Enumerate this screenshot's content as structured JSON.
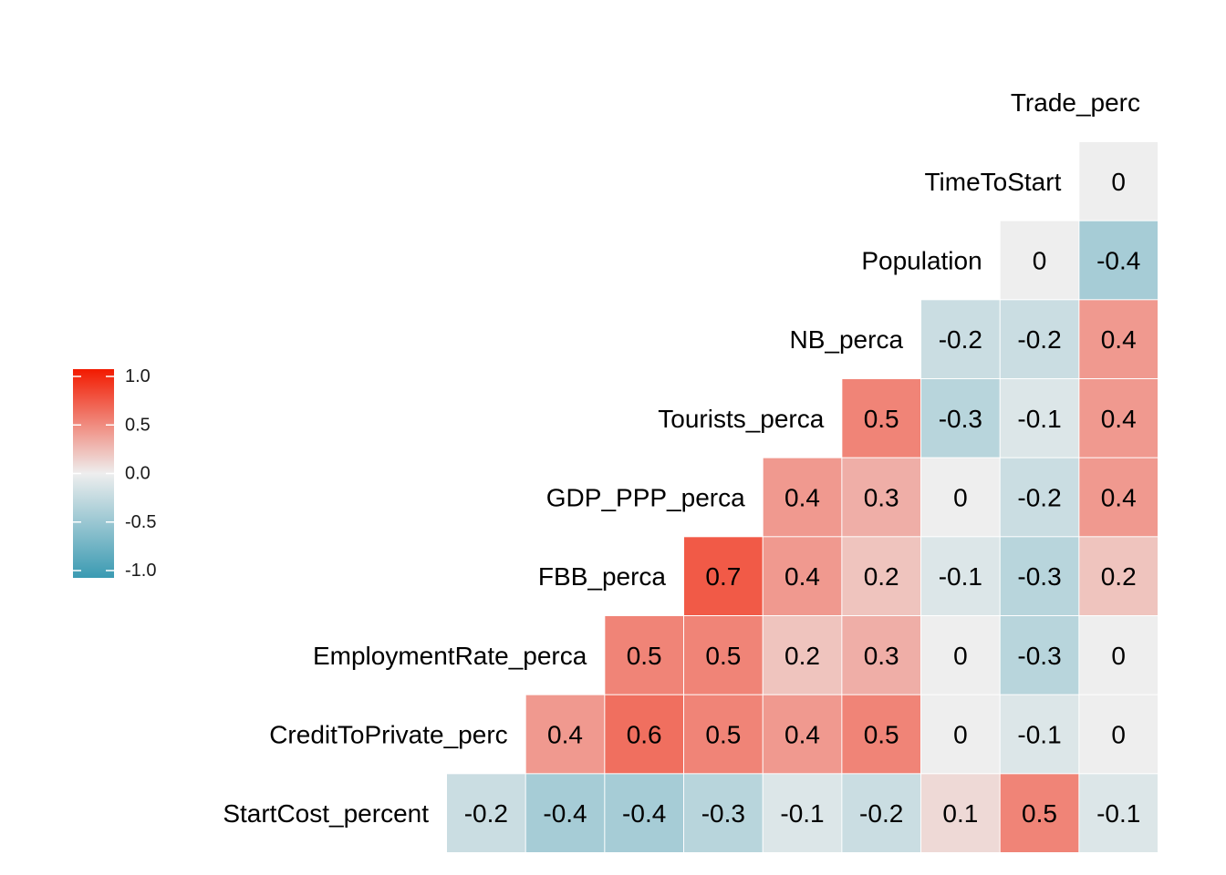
{
  "chart_data": {
    "type": "heatmap",
    "layout": "lower-triangle correlation matrix",
    "variables": [
      "StartCost_percent",
      "CreditToPrivate_perc",
      "EmploymentRate_perca",
      "FBB_perca",
      "GDP_PPP_perca",
      "Tourists_perca",
      "NB_perca",
      "Population",
      "TimeToStart",
      "Trade_perc"
    ],
    "matrix": [
      [
        -0.2,
        -0.4,
        -0.4,
        -0.3,
        -0.1,
        -0.2,
        0.1,
        0.5,
        -0.1
      ],
      [
        0.4,
        0.6,
        0.5,
        0.4,
        0.5,
        0,
        -0.1,
        0
      ],
      [
        0.5,
        0.5,
        0.2,
        0.3,
        0,
        -0.3,
        0
      ],
      [
        0.7,
        0.4,
        0.2,
        -0.1,
        -0.3,
        0.2
      ],
      [
        0.4,
        0.3,
        0,
        -0.2,
        0.4
      ],
      [
        0.5,
        -0.3,
        -0.1,
        0.4
      ],
      [
        -0.2,
        -0.2,
        0.4
      ],
      [
        0,
        -0.4
      ],
      [
        0
      ]
    ],
    "color_scale": {
      "low": "#3A9AB2",
      "mid": "#EEEEEE",
      "high": "#F21A00",
      "limits": [
        -1,
        1
      ]
    },
    "legend": {
      "position": "left",
      "ticks": [
        "1.0",
        "0.5",
        "0.0",
        "-0.5",
        "-1.0"
      ]
    }
  }
}
